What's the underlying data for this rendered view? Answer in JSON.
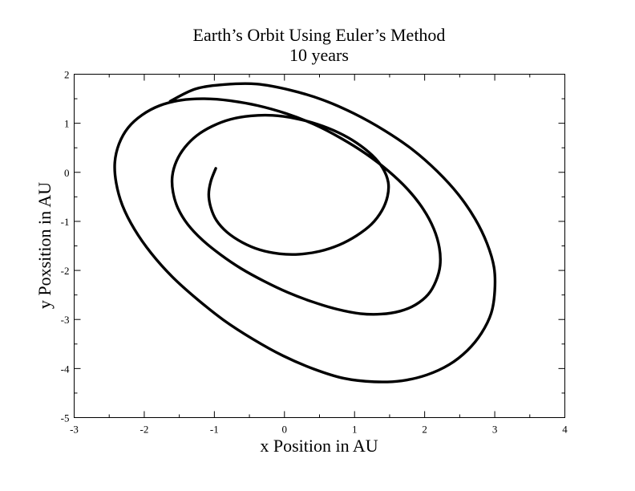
{
  "chart_data": {
    "type": "line",
    "title": "Earth’s Orbit Using Euler’s Method",
    "subtitle": "10 years",
    "xlabel": "x Position in AU",
    "ylabel": "y Poxsition in AU",
    "xlim": [
      -3,
      4
    ],
    "ylim": [
      -5,
      2
    ],
    "xticks": [
      -3,
      -2,
      -1,
      0,
      1,
      2,
      3,
      4
    ],
    "yticks": [
      -5,
      -4,
      -3,
      -2,
      -1,
      0,
      1,
      2
    ],
    "xtick_labels": [
      "-3",
      "-2",
      "-1",
      "0",
      "1",
      "2",
      "3",
      "4"
    ],
    "ytick_labels": [
      "-5",
      "-4",
      "-3",
      "-2",
      "-1",
      "0",
      "1",
      "2"
    ],
    "grid": false,
    "legend": "none",
    "series": [
      {
        "color": "#000000",
        "x": [
          -0.98,
          -1.05,
          -1.08,
          -1.05,
          -0.97,
          -0.82,
          -0.6,
          -0.35,
          -0.07,
          0.21,
          0.5,
          0.78,
          1.03,
          1.24,
          1.39,
          1.47,
          1.48,
          1.4,
          1.25,
          1.03,
          0.77,
          0.47,
          0.15,
          -0.17,
          -0.48,
          -0.77,
          -1.03,
          -1.25,
          -1.42,
          -1.54,
          -1.6,
          -1.59,
          -1.52,
          -1.38,
          -1.17,
          -0.91,
          -0.62,
          -0.29,
          0.05,
          0.4,
          0.75,
          1.08,
          1.38,
          1.65,
          1.87,
          2.05,
          2.16,
          2.22,
          2.21,
          2.13,
          1.98,
          1.76,
          1.48,
          1.16,
          0.8,
          0.42,
          0.02,
          -0.38,
          -0.77,
          -1.14,
          -1.48,
          -1.78,
          -2.03,
          -2.23,
          -2.36,
          -2.42,
          -2.4,
          -2.31,
          -2.14,
          -1.9,
          -1.6,
          -1.25,
          -0.87,
          -0.45,
          -0.02,
          0.42,
          0.85,
          1.28,
          1.67,
          2.03,
          2.35,
          2.61,
          2.81,
          2.95,
          3.0,
          2.99,
          2.89,
          2.72,
          2.48,
          2.18,
          1.83,
          1.43,
          0.99,
          0.54,
          0.07,
          -0.4,
          -0.85,
          -1.27,
          -1.63
        ],
        "y": [
          0.08,
          -0.18,
          -0.45,
          -0.72,
          -0.98,
          -1.22,
          -1.43,
          -1.58,
          -1.66,
          -1.67,
          -1.61,
          -1.48,
          -1.29,
          -1.06,
          -0.78,
          -0.49,
          -0.2,
          0.09,
          0.35,
          0.6,
          0.81,
          0.98,
          1.1,
          1.16,
          1.15,
          1.08,
          0.94,
          0.75,
          0.51,
          0.23,
          -0.08,
          -0.4,
          -0.73,
          -1.06,
          -1.38,
          -1.68,
          -1.96,
          -2.22,
          -2.45,
          -2.64,
          -2.79,
          -2.88,
          -2.89,
          -2.83,
          -2.7,
          -2.49,
          -2.22,
          -1.9,
          -1.54,
          -1.15,
          -0.75,
          -0.35,
          0.03,
          0.38,
          0.7,
          0.98,
          1.2,
          1.36,
          1.46,
          1.5,
          1.47,
          1.36,
          1.17,
          0.91,
          0.58,
          0.2,
          -0.22,
          -0.68,
          -1.16,
          -1.65,
          -2.13,
          -2.58,
          -3.01,
          -3.4,
          -3.74,
          -4.01,
          -4.2,
          -4.27,
          -4.25,
          -4.13,
          -3.92,
          -3.63,
          -3.28,
          -2.87,
          -2.42,
          -1.94,
          -1.45,
          -0.95,
          -0.45,
          0.02,
          0.46,
          0.85,
          1.2,
          1.48,
          1.68,
          1.8,
          1.79,
          1.7,
          1.45
        ]
      }
    ]
  }
}
